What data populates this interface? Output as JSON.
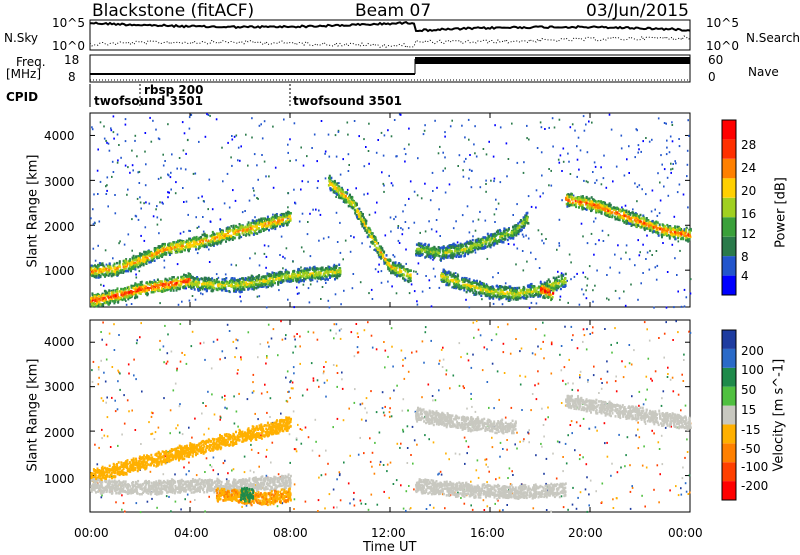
{
  "header": {
    "station": "Blackstone (fitACF)",
    "beam": "Beam 07",
    "date": "03/Jun/2015"
  },
  "side_labels": {
    "nsky": "N.Sky",
    "freq": "Freq.",
    "freq_unit": "[MHz]",
    "cpid": "CPID",
    "nsearch": "N.Search",
    "nave": "Nave"
  },
  "top_ticks": {
    "noise_hi": "10^5",
    "noise_lo": "10^0",
    "freq_hi": "18",
    "freq_lo": "8",
    "nave_hi": "60",
    "nave_lo": "0"
  },
  "cpid_labels": [
    "twofsound 3501",
    "rbsp 200",
    "twofsound 3501"
  ],
  "x_axis": {
    "label": "Time UT",
    "ticks": [
      "00:00",
      "04:00",
      "08:00",
      "12:00",
      "16:00",
      "20:00",
      "00:00"
    ]
  },
  "y_axis": {
    "label": "Slant Range [km]",
    "ticks": [
      "1000",
      "2000",
      "3000",
      "4000"
    ]
  },
  "power_bar": {
    "label": "Power [dB]",
    "ticks": [
      "4",
      "8",
      "12",
      "16",
      "20",
      "24",
      "28"
    ],
    "colors": [
      "#0000ff",
      "#2255cc",
      "#2a7a4a",
      "#3aa03a",
      "#a0d020",
      "#ffd000",
      "#ff8000",
      "#ff3000",
      "#ff0000"
    ]
  },
  "velocity_bar": {
    "label": "Velocity [m s^-1]",
    "ticks": [
      "200",
      "100",
      "50",
      "15",
      "-15",
      "-50",
      "-100",
      "-200"
    ],
    "colors": [
      "#1e3ca0",
      "#2a6ac8",
      "#1e8a4a",
      "#50c040",
      "#c8c8c0",
      "#ffb000",
      "#ff8000",
      "#ff4000",
      "#ff0000"
    ]
  },
  "chart_data": [
    {
      "type": "heatmap",
      "title": "Power",
      "xlabel": "Time UT",
      "ylabel": "Slant Range [km]",
      "xlim": [
        0,
        24
      ],
      "ylim": [
        180,
        4500
      ],
      "colorbar_label": "Power [dB]",
      "colorbar_range": [
        0,
        30
      ],
      "bands": [
        {
          "t": [
            0,
            1,
            2,
            3,
            4,
            5,
            6,
            7,
            8
          ],
          "range": [
            1000,
            1050,
            1250,
            1500,
            1600,
            1750,
            1900,
            2050,
            2200
          ],
          "db": 22
        },
        {
          "t": [
            0,
            1,
            2,
            3,
            4
          ],
          "range": [
            350,
            450,
            600,
            700,
            800
          ],
          "db": 26
        },
        {
          "t": [
            4,
            5,
            6,
            7,
            8,
            9,
            10
          ],
          "range": [
            750,
            700,
            700,
            800,
            900,
            950,
            1000
          ],
          "db": 18
        },
        {
          "t": [
            9.5,
            10.5,
            11,
            11.5,
            12,
            12.8
          ],
          "range": [
            3000,
            2500,
            2000,
            1500,
            1100,
            900
          ],
          "db": 20
        },
        {
          "t": [
            13,
            14,
            15,
            16,
            17,
            17.5
          ],
          "range": [
            1500,
            1400,
            1500,
            1700,
            1900,
            2200
          ],
          "db": 16
        },
        {
          "t": [
            14,
            15,
            16,
            17,
            18,
            19
          ],
          "range": [
            900,
            700,
            550,
            500,
            600,
            800
          ],
          "db": 18
        },
        {
          "t": [
            18,
            18.5
          ],
          "range": [
            600,
            500
          ],
          "db": 28
        },
        {
          "t": [
            19,
            20,
            21,
            22,
            23,
            24
          ],
          "range": [
            2600,
            2500,
            2300,
            2100,
            1900,
            1800
          ],
          "db": 24
        }
      ]
    },
    {
      "type": "heatmap",
      "title": "Velocity",
      "xlabel": "Time UT",
      "ylabel": "Slant Range [km]",
      "xlim": [
        0,
        24
      ],
      "ylim": [
        180,
        4500
      ],
      "colorbar_label": "Velocity [m s^-1]",
      "colorbar_range": [
        -200,
        200
      ],
      "bands": [
        {
          "t": [
            0,
            2,
            4,
            6,
            8
          ],
          "range": [
            1000,
            1300,
            1600,
            1900,
            2200
          ],
          "vel": -40
        },
        {
          "t": [
            0,
            2,
            4,
            6,
            8
          ],
          "range": [
            800,
            750,
            800,
            800,
            900
          ],
          "vel": 0
        },
        {
          "t": [
            5,
            6,
            7,
            8
          ],
          "range": [
            600,
            550,
            500,
            600
          ],
          "vel": -60
        },
        {
          "t": [
            6,
            6.5
          ],
          "range": [
            600,
            600
          ],
          "vel": 80
        },
        {
          "t": [
            13,
            15,
            17,
            19
          ],
          "range": [
            800,
            700,
            650,
            700
          ],
          "vel": 0
        },
        {
          "t": [
            13,
            15,
            17
          ],
          "range": [
            2400,
            2200,
            2100
          ],
          "vel": 0
        },
        {
          "t": [
            19,
            21,
            23,
            24
          ],
          "range": [
            2700,
            2500,
            2300,
            2200
          ],
          "vel": 0
        }
      ]
    }
  ]
}
